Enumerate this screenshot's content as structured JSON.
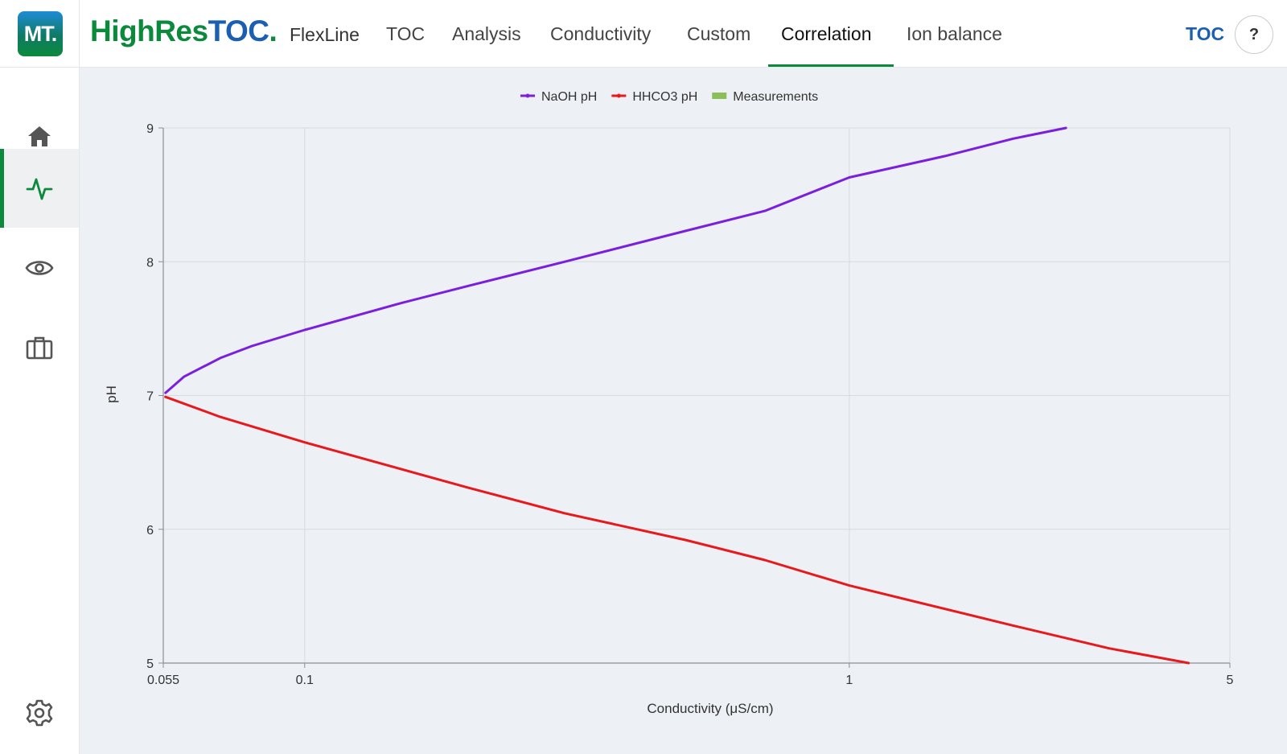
{
  "app": {
    "logo_text": "MT.",
    "brand_part1": "HighRes",
    "brand_part2": "TOC",
    "brand_dot": ".",
    "product": "FlexLine"
  },
  "nav": {
    "items": [
      {
        "label": "TOC"
      },
      {
        "label": "Analysis"
      },
      {
        "label": "Conductivity"
      },
      {
        "label": "Custom"
      },
      {
        "label": "Correlation"
      },
      {
        "label": "Ion balance"
      }
    ],
    "active": "Correlation"
  },
  "header_right": {
    "toc_link": "TOC",
    "help_label": "?"
  },
  "sidebar": {
    "items": [
      {
        "icon": "home-icon"
      },
      {
        "icon": "activity-icon",
        "active": true
      },
      {
        "icon": "eye-icon"
      },
      {
        "icon": "briefcase-icon"
      }
    ],
    "bottom_icon": "gear-icon"
  },
  "colors": {
    "accent": "#0b8a3c",
    "link": "#1a5fb4",
    "naoh": "#7a1fe0",
    "hhco3": "#e8191c",
    "measurements": "#8cbf5a"
  },
  "chart_data": {
    "type": "line",
    "xlabel": "Conductivity (μS/cm)",
    "ylabel": "pH",
    "xscale": "log",
    "xlim": [
      0.055,
      5
    ],
    "ylim": [
      5,
      9
    ],
    "xticks": [
      {
        "value": 0.055,
        "label": "0.055"
      },
      {
        "value": 0.1,
        "label": "0.1"
      },
      {
        "value": 1,
        "label": "1"
      },
      {
        "value": 5,
        "label": "5"
      }
    ],
    "yticks": [
      {
        "value": 5,
        "label": "5"
      },
      {
        "value": 6,
        "label": "6"
      },
      {
        "value": 7,
        "label": "7"
      },
      {
        "value": 8,
        "label": "8"
      },
      {
        "value": 9,
        "label": "9"
      }
    ],
    "grid": true,
    "legend": "top-center",
    "series": [
      {
        "name": "NaOH pH",
        "color": "#7a1fe0",
        "x": [
          0.0555,
          0.06,
          0.07,
          0.08,
          0.1,
          0.15,
          0.2,
          0.3,
          0.5,
          0.7,
          1.0,
          1.5,
          2.0,
          2.5
        ],
        "y": [
          7.02,
          7.14,
          7.28,
          7.37,
          7.49,
          7.69,
          7.82,
          8.0,
          8.23,
          8.38,
          8.63,
          8.79,
          8.92,
          9.0
        ]
      },
      {
        "name": "HHCO3 pH",
        "color": "#e8191c",
        "x": [
          0.0555,
          0.07,
          0.1,
          0.2,
          0.3,
          0.5,
          0.7,
          1.0,
          2.0,
          3.0,
          4.2
        ],
        "y": [
          6.99,
          6.84,
          6.65,
          6.31,
          6.12,
          5.92,
          5.77,
          5.58,
          5.28,
          5.11,
          5.0
        ]
      },
      {
        "name": "Measurements",
        "color": "#8cbf5a",
        "x": [],
        "y": []
      }
    ]
  }
}
